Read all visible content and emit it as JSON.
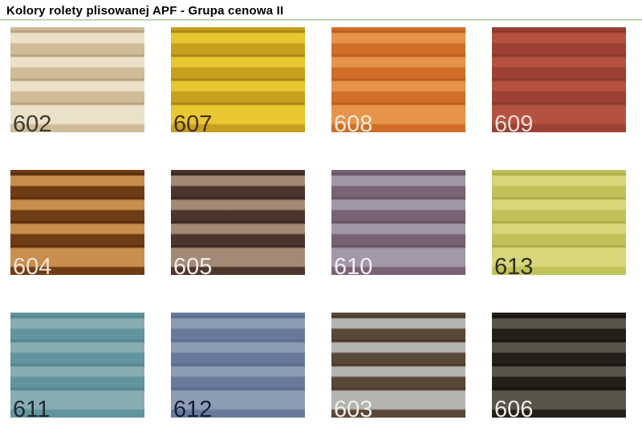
{
  "page": {
    "title": "Kolory rolety plisowanej APF - Grupa cenowa II"
  },
  "colors": {
    "background": "#ffffff",
    "title_text": "#000000",
    "divider": "#c5d1bf"
  },
  "swatches": [
    {
      "code": "602",
      "light": "#ebe1c8",
      "dark": "#cfbb97",
      "line": "#b7a27c",
      "label_color": "#3c3c34"
    },
    {
      "code": "607",
      "light": "#e8c733",
      "dark": "#c6a01d",
      "line": "#a88614",
      "label_color": "#452e06"
    },
    {
      "code": "608",
      "light": "#e6944a",
      "dark": "#d06e27",
      "line": "#b95d1e",
      "label_color": "#f2e9da"
    },
    {
      "code": "609",
      "light": "#b5513f",
      "dark": "#9c4134",
      "line": "#8a372c",
      "label_color": "#ecdcd4"
    },
    {
      "code": "604",
      "light": "#c98e4e",
      "dark": "#703c16",
      "line": "#582b0c",
      "label_color": "#f0e6d8"
    },
    {
      "code": "605",
      "light": "#a38a77",
      "dark": "#4c352b",
      "line": "#382620",
      "label_color": "#f0ebe6"
    },
    {
      "code": "610",
      "light": "#a597aa",
      "dark": "#786273",
      "line": "#665363",
      "label_color": "#f2eef2"
    },
    {
      "code": "613",
      "light": "#d8d57a",
      "dark": "#c0c158",
      "line": "#adac48",
      "label_color": "#30301e"
    },
    {
      "code": "611",
      "light": "#87acb1",
      "dark": "#62949d",
      "line": "#53848d",
      "label_color": "#1c2d30"
    },
    {
      "code": "612",
      "light": "#8d9cb5",
      "dark": "#69799c",
      "line": "#5a6a8d",
      "label_color": "#131f38"
    },
    {
      "code": "603",
      "light": "#b5b4af",
      "dark": "#594738",
      "line": "#463625",
      "label_color": "#f1efe9"
    },
    {
      "code": "606",
      "light": "#5a554b",
      "dark": "#23201a",
      "line": "#14110c",
      "label_color": "#efece6"
    }
  ]
}
